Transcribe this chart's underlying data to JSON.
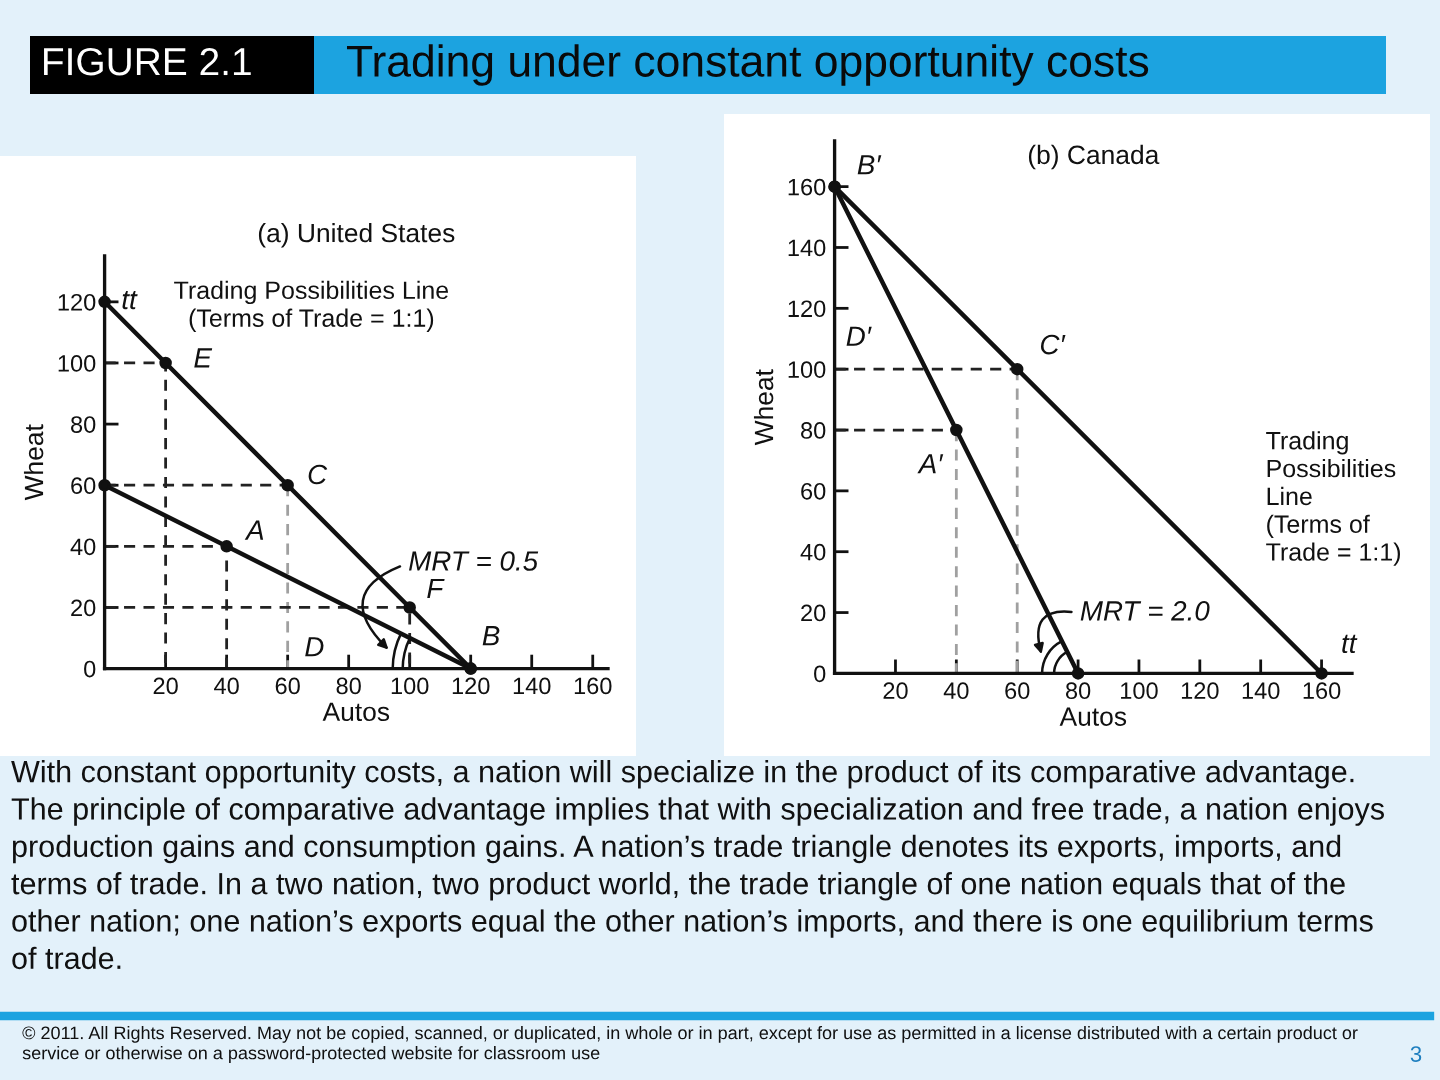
{
  "chart_data": [
    {
      "type": "other",
      "title": "Trading under constant opportunity costs",
      "annotations": [
        "FIGURE 2.1"
      ]
    },
    {
      "type": "line",
      "title": "(a) United States",
      "xlabel": "Autos",
      "ylabel": "Wheat",
      "xlim": [
        0,
        165
      ],
      "ylim": [
        0,
        135
      ],
      "xticks": [
        20,
        40,
        60,
        80,
        100,
        120,
        140,
        160
      ],
      "yticks": [
        0,
        20,
        40,
        60,
        80,
        100,
        120
      ],
      "series": [
        {
          "x": [
            0,
            40,
            120
          ],
          "values": [
            60,
            40,
            0
          ],
          "color": "#111111",
          "marker": "circle",
          "line_style": "solid"
        },
        {
          "name": "Trading Possibilities Line\n(Terms of Trade = 1:1)",
          "x": [
            0,
            20,
            60,
            100,
            120
          ],
          "values": [
            120,
            100,
            60,
            20,
            0
          ],
          "color": "#111111",
          "marker": "circle",
          "line_style": "solid"
        },
        {
          "x": [
            0,
            20,
            20
          ],
          "values": [
            100,
            100,
            0
          ],
          "color": "#222222",
          "line_style": "dashed"
        },
        {
          "x": [
            0,
            60
          ],
          "values": [
            60,
            60
          ],
          "color": "#222222",
          "line_style": "dashed"
        },
        {
          "x": [
            60,
            60
          ],
          "values": [
            60,
            0
          ],
          "color": "#a0a0a0",
          "line_style": "dashed"
        },
        {
          "x": [
            0,
            40,
            40
          ],
          "values": [
            40,
            40,
            0
          ],
          "color": "#222222",
          "line_style": "dashed"
        },
        {
          "x": [
            0,
            100,
            100
          ],
          "values": [
            20,
            20,
            0
          ],
          "color": "#222222",
          "line_style": "dashed"
        }
      ],
      "annotations": [
        {
          "text": "tt",
          "x": 0,
          "y": 120
        },
        {
          "text": "E",
          "x": 20,
          "y": 100
        },
        {
          "text": "C",
          "x": 60,
          "y": 60
        },
        {
          "text": "A",
          "x": 40,
          "y": 40
        },
        {
          "text": "F",
          "x": 100,
          "y": 20
        },
        {
          "text": "D",
          "x": 60,
          "y": 0
        },
        {
          "text": "B",
          "x": 120,
          "y": 0
        },
        "MRT = 0.5"
      ]
    },
    {
      "type": "line",
      "title": "(b) Canada",
      "xlabel": "Autos",
      "ylabel": "Wheat",
      "xlim": [
        0,
        170
      ],
      "ylim": [
        0,
        175
      ],
      "xticks": [
        20,
        40,
        60,
        80,
        100,
        120,
        140,
        160
      ],
      "yticks": [
        0,
        20,
        40,
        60,
        80,
        100,
        120,
        140,
        160
      ],
      "series": [
        {
          "x": [
            0,
            40,
            80
          ],
          "values": [
            160,
            80,
            0
          ],
          "color": "#111111",
          "marker": "circle",
          "line_style": "solid"
        },
        {
          "name": "Trading\nPossibilities\nLine\n(Terms of\nTrade = 1:1)",
          "x": [
            0,
            60,
            160
          ],
          "values": [
            160,
            100,
            0
          ],
          "color": "#111111",
          "marker": "circle",
          "line_style": "solid"
        },
        {
          "x": [
            0,
            60
          ],
          "values": [
            100,
            100
          ],
          "color": "#222222",
          "line_style": "dashed"
        },
        {
          "x": [
            60,
            60
          ],
          "values": [
            100,
            0
          ],
          "color": "#a0a0a0",
          "line_style": "dashed"
        },
        {
          "x": [
            0,
            40
          ],
          "values": [
            80,
            80
          ],
          "color": "#222222",
          "line_style": "dashed"
        },
        {
          "x": [
            40,
            40
          ],
          "values": [
            80,
            0
          ],
          "color": "#a0a0a0",
          "line_style": "dashed"
        }
      ],
      "annotations": [
        {
          "text": "B′",
          "x": 0,
          "y": 160
        },
        {
          "text": "D′",
          "x": 0,
          "y": 100
        },
        {
          "text": "C′",
          "x": 60,
          "y": 100
        },
        {
          "text": "A′",
          "x": 40,
          "y": 80
        },
        {
          "text": "tt",
          "x": 160,
          "y": 0
        },
        "MRT = 2.0"
      ]
    },
    {
      "type": "other",
      "annotations": [
        "With constant opportunity costs, a nation will specialize in the product of its comparative advantage. The principle of comparative advantage implies that with specialization and free trade, a nation enjoys production gains and consumption gains. A nation’s trade triangle denotes its exports, imports, and terms of trade. In a two nation, two product world, the trade triangle of one nation equals that of the other nation; one nation’s exports equal the other nation’s imports, and there is one equilibrium terms of trade.",
        "© 2011. All Rights Reserved. May not be copied, scanned, or duplicated, in whole or in part, except for use as permitted in a license distributed with a certain product or service or otherwise on a password-protected website for classroom use",
        "3"
      ]
    }
  ]
}
